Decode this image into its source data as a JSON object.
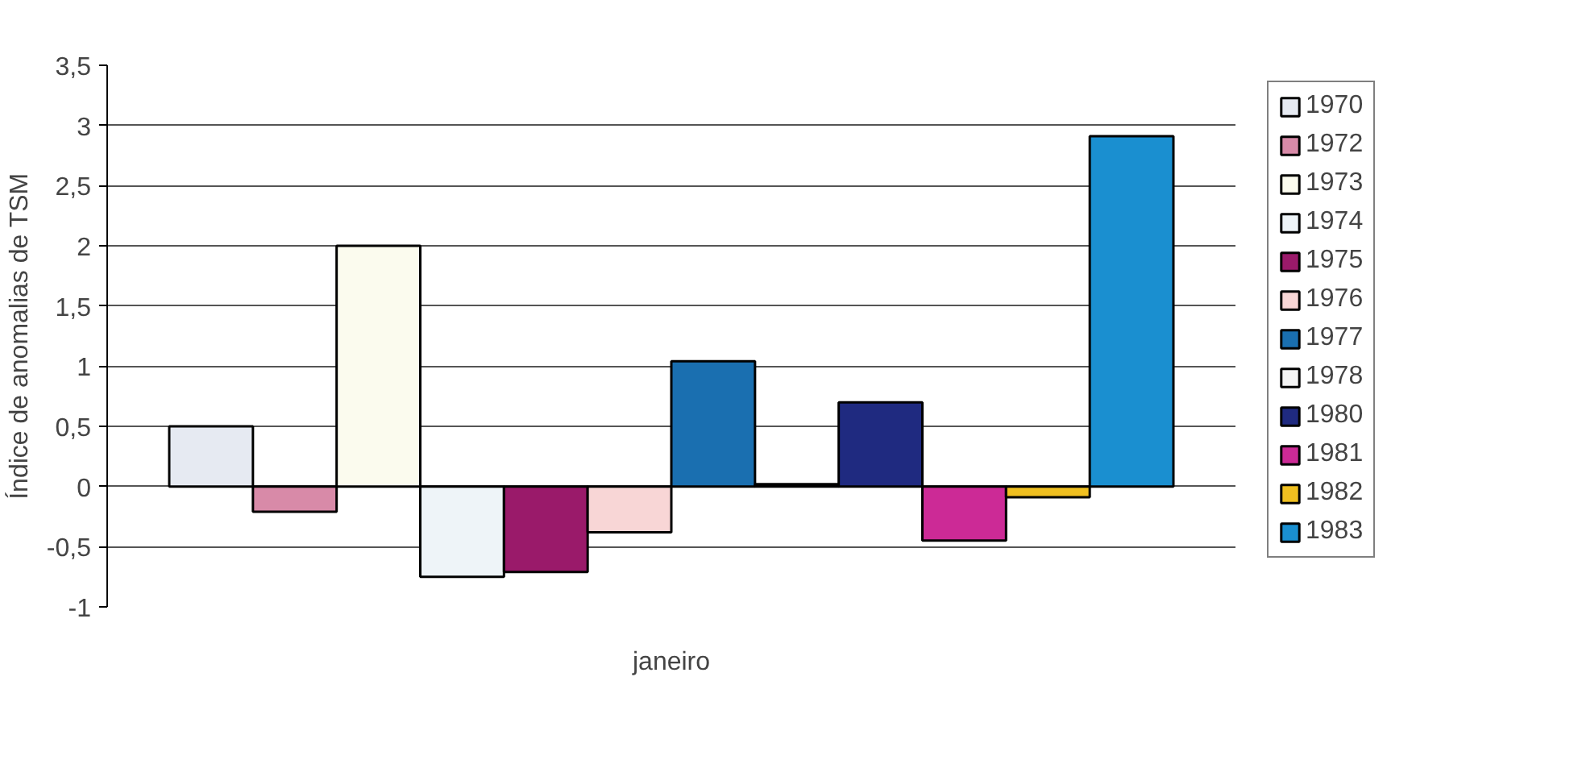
{
  "chart_data": {
    "type": "bar",
    "ylabel": "Índice de anomalias de TSM",
    "categories": [
      "janeiro"
    ],
    "series": [
      {
        "name": "1970",
        "color": "#e6eaf2",
        "values": [
          0.5
        ]
      },
      {
        "name": "1972",
        "color": "#d88aa8",
        "values": [
          -0.21
        ]
      },
      {
        "name": "1973",
        "color": "#fbfbee",
        "values": [
          2.0
        ]
      },
      {
        "name": "1974",
        "color": "#eef4f8",
        "values": [
          -0.75
        ]
      },
      {
        "name": "1975",
        "color": "#9a1a6a",
        "values": [
          -0.71
        ]
      },
      {
        "name": "1976",
        "color": "#f8d6d6",
        "values": [
          -0.38
        ]
      },
      {
        "name": "1977",
        "color": "#1a6fb0",
        "values": [
          1.04
        ]
      },
      {
        "name": "1978",
        "color": "#f4f4f4",
        "values": [
          0.02
        ]
      },
      {
        "name": "1980",
        "color": "#1f2a80",
        "values": [
          0.7
        ]
      },
      {
        "name": "1981",
        "color": "#cc2a96",
        "values": [
          -0.45
        ]
      },
      {
        "name": "1982",
        "color": "#f0c020",
        "values": [
          -0.09
        ]
      },
      {
        "name": "1983",
        "color": "#1a8fd0",
        "values": [
          2.91
        ]
      }
    ],
    "ylim": [
      -1,
      3.5
    ],
    "yticks": [
      -1,
      {
        "value": -0.5,
        "label": "-0,5"
      },
      0,
      {
        "value": 0.5,
        "label": "0,5"
      },
      1,
      {
        "value": 1.5,
        "label": "1,5"
      },
      2,
      {
        "value": 2.5,
        "label": "2,5"
      },
      3,
      {
        "value": 3.5,
        "label": "3,5"
      }
    ],
    "grid": "y",
    "legend": "right"
  }
}
